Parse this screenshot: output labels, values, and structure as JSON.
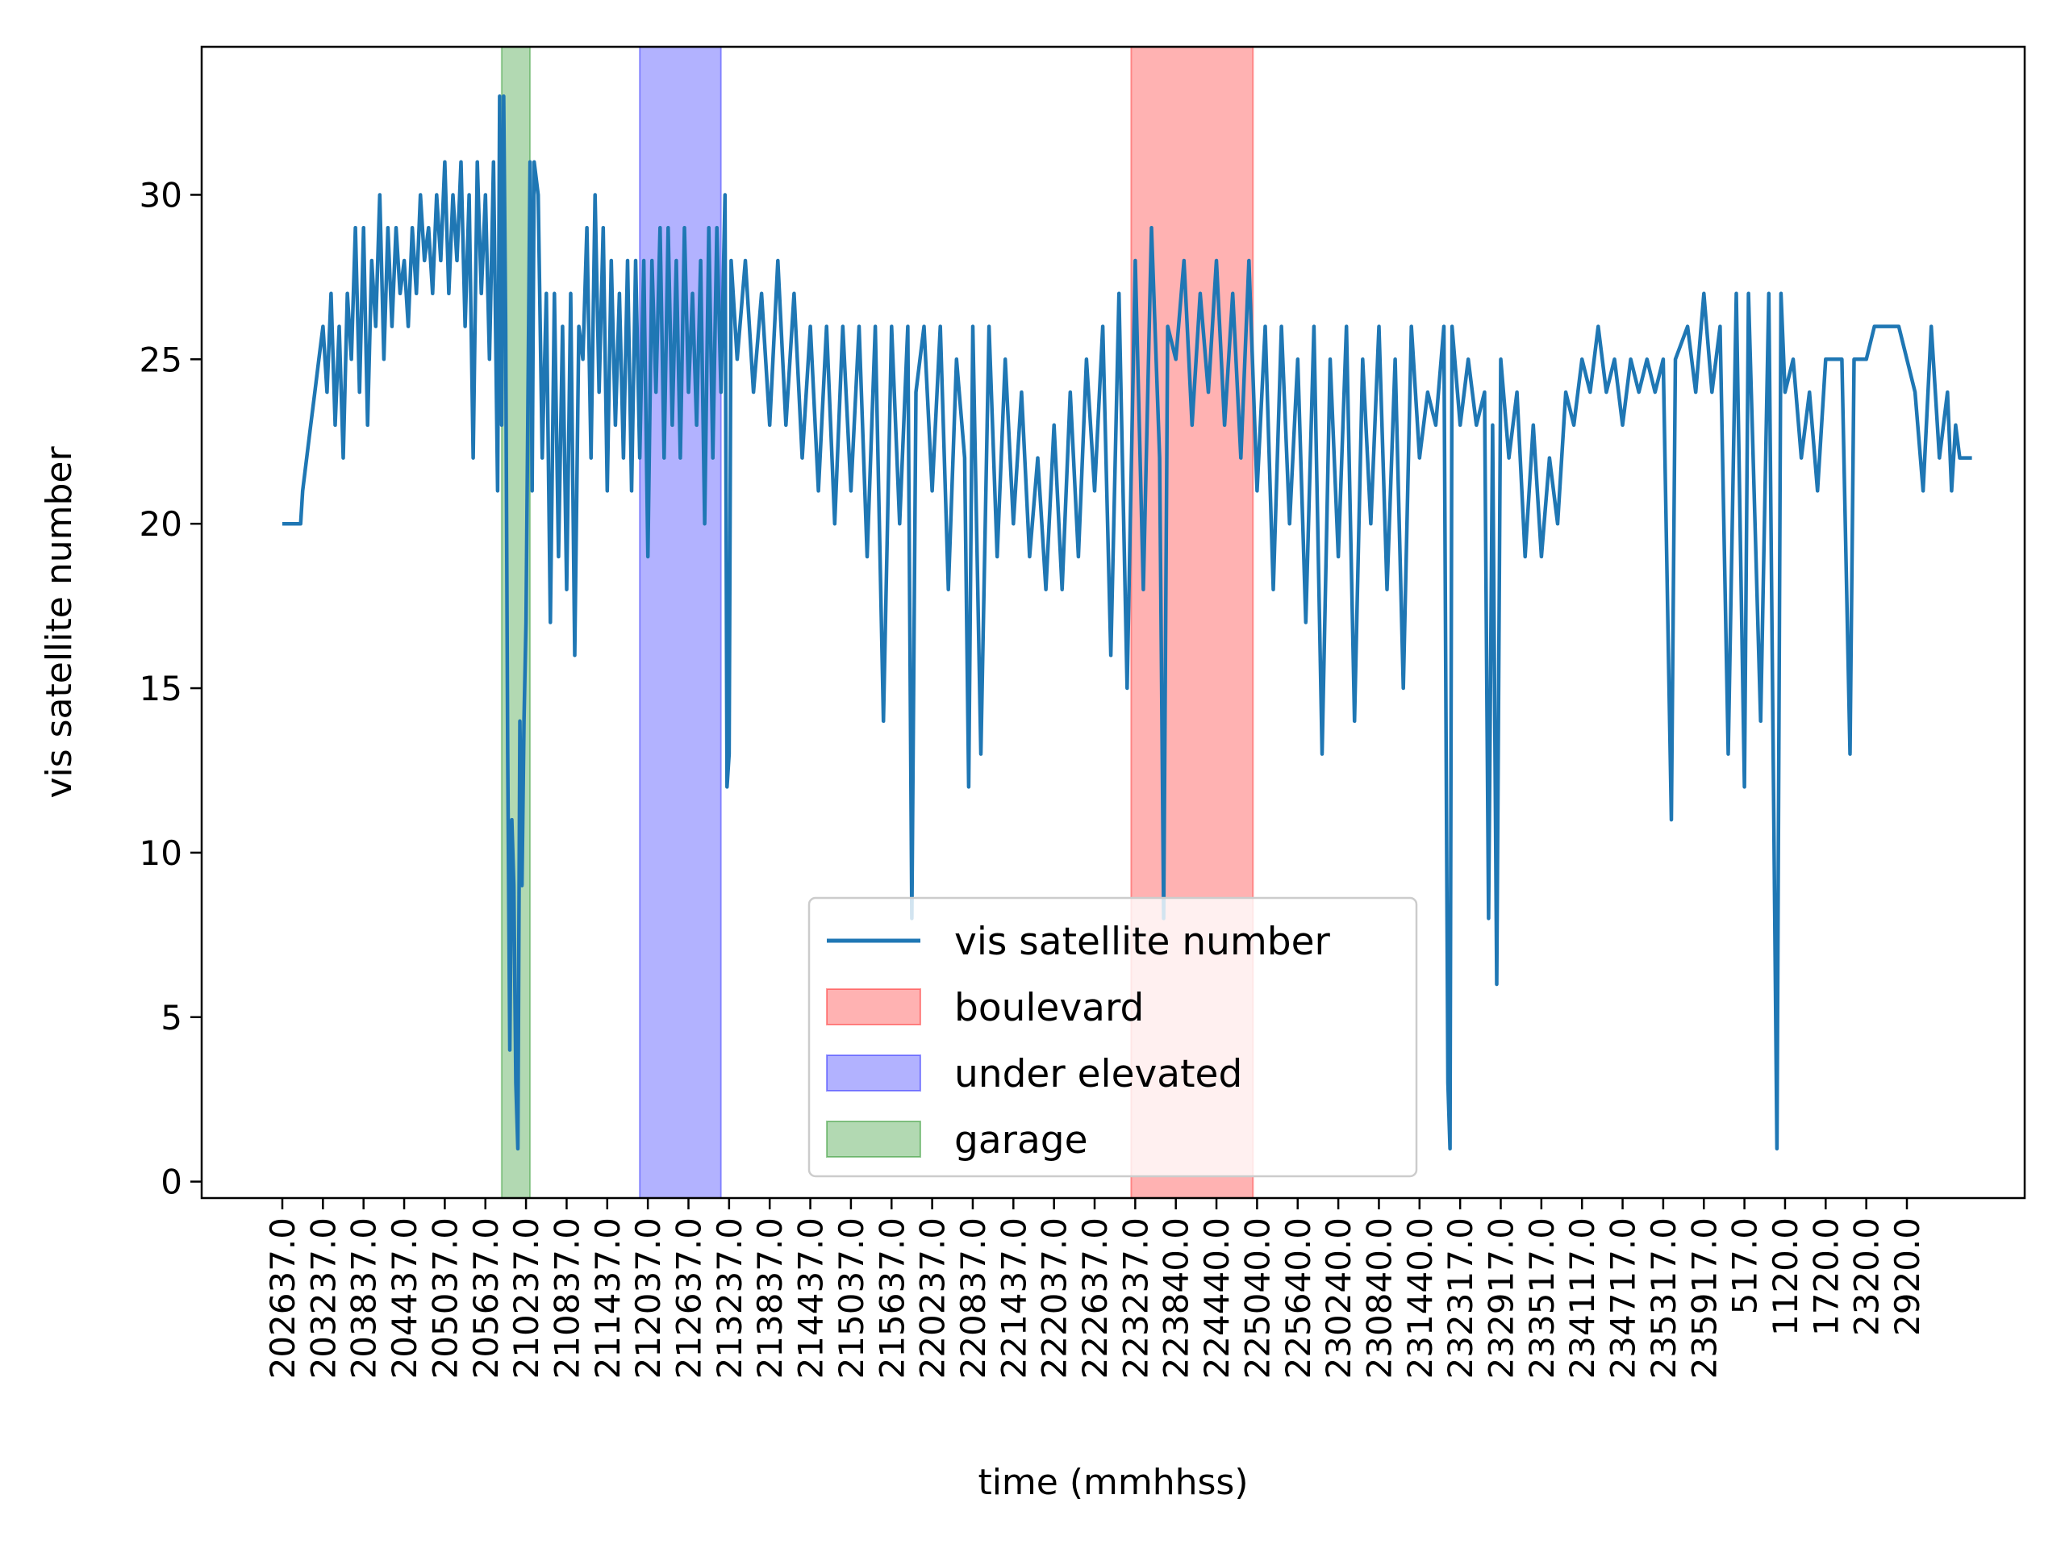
{
  "chart_data": {
    "type": "line",
    "xlabel": "time (mmhhss)",
    "ylabel": "vis satellite number",
    "ylim": [
      -0.5,
      34.5
    ],
    "yticks": [
      0,
      5,
      10,
      15,
      20,
      25,
      30
    ],
    "grid": false,
    "legend_position": "lower-center",
    "x_tick_labels": [
      "202637.0",
      "203237.0",
      "203837.0",
      "204437.0",
      "205037.0",
      "205637.0",
      "210237.0",
      "210837.0",
      "211437.0",
      "212037.0",
      "212637.0",
      "213237.0",
      "213837.0",
      "214437.0",
      "215037.0",
      "215637.0",
      "220237.0",
      "220837.0",
      "221437.0",
      "222037.0",
      "222637.0",
      "223237.0",
      "223840.0",
      "224440.0",
      "225040.0",
      "225640.0",
      "230240.0",
      "230840.0",
      "231440.0",
      "232317.0",
      "232917.0",
      "233517.0",
      "234117.0",
      "234717.0",
      "235317.0",
      "235917.0",
      "517.0",
      "1120.0",
      "1720.0",
      "2320.0",
      "2920.0"
    ],
    "x_index_range": [
      0,
      41.6
    ],
    "regions": [
      {
        "name": "boulevard",
        "x_start": 20.9,
        "x_end": 23.9,
        "color": "#ff0000"
      },
      {
        "name": "under elevated",
        "x_start": 8.8,
        "x_end": 10.8,
        "color": "#0000ff"
      },
      {
        "name": "garage",
        "x_start": 5.4,
        "x_end": 6.1,
        "color": "#008000"
      }
    ],
    "series": [
      {
        "name": "vis satellite number",
        "color": "#1f77b4",
        "points": [
          [
            0,
            20
          ],
          [
            0.45,
            20
          ],
          [
            0.5,
            21
          ],
          [
            0.6,
            22
          ],
          [
            0.7,
            23
          ],
          [
            0.8,
            24
          ],
          [
            0.9,
            25
          ],
          [
            1.0,
            26
          ],
          [
            1.1,
            24
          ],
          [
            1.2,
            27
          ],
          [
            1.3,
            23
          ],
          [
            1.4,
            26
          ],
          [
            1.5,
            22
          ],
          [
            1.6,
            27
          ],
          [
            1.7,
            25
          ],
          [
            1.8,
            29
          ],
          [
            1.9,
            24
          ],
          [
            2.0,
            29
          ],
          [
            2.1,
            23
          ],
          [
            2.2,
            28
          ],
          [
            2.3,
            26
          ],
          [
            2.4,
            30
          ],
          [
            2.5,
            25
          ],
          [
            2.6,
            29
          ],
          [
            2.7,
            26
          ],
          [
            2.8,
            29
          ],
          [
            2.9,
            27
          ],
          [
            3.0,
            28
          ],
          [
            3.1,
            26
          ],
          [
            3.2,
            29
          ],
          [
            3.3,
            27
          ],
          [
            3.4,
            30
          ],
          [
            3.5,
            28
          ],
          [
            3.6,
            29
          ],
          [
            3.7,
            27
          ],
          [
            3.8,
            30
          ],
          [
            3.9,
            28
          ],
          [
            4.0,
            31
          ],
          [
            4.1,
            27
          ],
          [
            4.2,
            30
          ],
          [
            4.3,
            28
          ],
          [
            4.4,
            31
          ],
          [
            4.5,
            26
          ],
          [
            4.6,
            30
          ],
          [
            4.7,
            22
          ],
          [
            4.8,
            31
          ],
          [
            4.9,
            27
          ],
          [
            5.0,
            30
          ],
          [
            5.1,
            25
          ],
          [
            5.2,
            31
          ],
          [
            5.3,
            21
          ],
          [
            5.35,
            33
          ],
          [
            5.4,
            23
          ],
          [
            5.45,
            33
          ],
          [
            5.5,
            26
          ],
          [
            5.55,
            13
          ],
          [
            5.6,
            4
          ],
          [
            5.65,
            11
          ],
          [
            5.7,
            9
          ],
          [
            5.75,
            3
          ],
          [
            5.8,
            1
          ],
          [
            5.85,
            14
          ],
          [
            5.9,
            9
          ],
          [
            5.95,
            14
          ],
          [
            6.0,
            17
          ],
          [
            6.05,
            24
          ],
          [
            6.1,
            31
          ],
          [
            6.15,
            21
          ],
          [
            6.2,
            31
          ],
          [
            6.3,
            30
          ],
          [
            6.4,
            22
          ],
          [
            6.5,
            27
          ],
          [
            6.6,
            17
          ],
          [
            6.7,
            27
          ],
          [
            6.8,
            19
          ],
          [
            6.9,
            26
          ],
          [
            7.0,
            18
          ],
          [
            7.1,
            27
          ],
          [
            7.2,
            16
          ],
          [
            7.3,
            26
          ],
          [
            7.4,
            25
          ],
          [
            7.5,
            29
          ],
          [
            7.6,
            22
          ],
          [
            7.7,
            30
          ],
          [
            7.8,
            24
          ],
          [
            7.9,
            29
          ],
          [
            8.0,
            21
          ],
          [
            8.1,
            28
          ],
          [
            8.2,
            23
          ],
          [
            8.3,
            27
          ],
          [
            8.4,
            22
          ],
          [
            8.5,
            28
          ],
          [
            8.6,
            21
          ],
          [
            8.7,
            28
          ],
          [
            8.8,
            22
          ],
          [
            8.9,
            28
          ],
          [
            9.0,
            19
          ],
          [
            9.1,
            28
          ],
          [
            9.2,
            24
          ],
          [
            9.3,
            29
          ],
          [
            9.4,
            22
          ],
          [
            9.5,
            29
          ],
          [
            9.6,
            23
          ],
          [
            9.7,
            28
          ],
          [
            9.8,
            22
          ],
          [
            9.9,
            29
          ],
          [
            10.0,
            24
          ],
          [
            10.1,
            27
          ],
          [
            10.2,
            23
          ],
          [
            10.3,
            28
          ],
          [
            10.4,
            20
          ],
          [
            10.5,
            29
          ],
          [
            10.6,
            22
          ],
          [
            10.7,
            29
          ],
          [
            10.8,
            24
          ],
          [
            10.9,
            30
          ],
          [
            10.95,
            12
          ],
          [
            11.0,
            13
          ],
          [
            11.05,
            28
          ],
          [
            11.2,
            25
          ],
          [
            11.4,
            28
          ],
          [
            11.6,
            24
          ],
          [
            11.8,
            27
          ],
          [
            12.0,
            23
          ],
          [
            12.2,
            28
          ],
          [
            12.4,
            23
          ],
          [
            12.6,
            27
          ],
          [
            12.8,
            22
          ],
          [
            13.0,
            26
          ],
          [
            13.2,
            21
          ],
          [
            13.4,
            26
          ],
          [
            13.6,
            20
          ],
          [
            13.8,
            26
          ],
          [
            14.0,
            21
          ],
          [
            14.2,
            26
          ],
          [
            14.4,
            19
          ],
          [
            14.6,
            26
          ],
          [
            14.8,
            14
          ],
          [
            15.0,
            26
          ],
          [
            15.2,
            20
          ],
          [
            15.4,
            26
          ],
          [
            15.5,
            8
          ],
          [
            15.6,
            24
          ],
          [
            15.8,
            26
          ],
          [
            16.0,
            21
          ],
          [
            16.2,
            26
          ],
          [
            16.4,
            18
          ],
          [
            16.6,
            25
          ],
          [
            16.8,
            22
          ],
          [
            16.9,
            12
          ],
          [
            17.0,
            26
          ],
          [
            17.2,
            13
          ],
          [
            17.4,
            26
          ],
          [
            17.6,
            19
          ],
          [
            17.8,
            25
          ],
          [
            18.0,
            20
          ],
          [
            18.2,
            24
          ],
          [
            18.4,
            19
          ],
          [
            18.6,
            22
          ],
          [
            18.8,
            18
          ],
          [
            19.0,
            23
          ],
          [
            19.2,
            18
          ],
          [
            19.4,
            24
          ],
          [
            19.6,
            19
          ],
          [
            19.8,
            25
          ],
          [
            20.0,
            21
          ],
          [
            20.2,
            26
          ],
          [
            20.4,
            16
          ],
          [
            20.6,
            27
          ],
          [
            20.8,
            15
          ],
          [
            21.0,
            28
          ],
          [
            21.2,
            18
          ],
          [
            21.4,
            29
          ],
          [
            21.6,
            22
          ],
          [
            21.7,
            8
          ],
          [
            21.8,
            26
          ],
          [
            22.0,
            25
          ],
          [
            22.2,
            28
          ],
          [
            22.4,
            23
          ],
          [
            22.6,
            27
          ],
          [
            22.8,
            24
          ],
          [
            23.0,
            28
          ],
          [
            23.2,
            23
          ],
          [
            23.4,
            27
          ],
          [
            23.6,
            22
          ],
          [
            23.8,
            28
          ],
          [
            24.0,
            21
          ],
          [
            24.2,
            26
          ],
          [
            24.4,
            18
          ],
          [
            24.6,
            26
          ],
          [
            24.8,
            20
          ],
          [
            25.0,
            25
          ],
          [
            25.2,
            17
          ],
          [
            25.4,
            26
          ],
          [
            25.6,
            13
          ],
          [
            25.8,
            25
          ],
          [
            26.0,
            19
          ],
          [
            26.2,
            26
          ],
          [
            26.4,
            14
          ],
          [
            26.6,
            25
          ],
          [
            26.8,
            20
          ],
          [
            27.0,
            26
          ],
          [
            27.2,
            18
          ],
          [
            27.4,
            25
          ],
          [
            27.6,
            15
          ],
          [
            27.8,
            26
          ],
          [
            28.0,
            22
          ],
          [
            28.2,
            24
          ],
          [
            28.4,
            23
          ],
          [
            28.6,
            26
          ],
          [
            28.7,
            3
          ],
          [
            28.75,
            1
          ],
          [
            28.8,
            26
          ],
          [
            29.0,
            23
          ],
          [
            29.2,
            25
          ],
          [
            29.4,
            23
          ],
          [
            29.6,
            24
          ],
          [
            29.7,
            8
          ],
          [
            29.8,
            23
          ],
          [
            29.9,
            6
          ],
          [
            30.0,
            25
          ],
          [
            30.2,
            22
          ],
          [
            30.4,
            24
          ],
          [
            30.6,
            19
          ],
          [
            30.8,
            23
          ],
          [
            31.0,
            19
          ],
          [
            31.2,
            22
          ],
          [
            31.4,
            20
          ],
          [
            31.6,
            24
          ],
          [
            31.8,
            23
          ],
          [
            32.0,
            25
          ],
          [
            32.2,
            24
          ],
          [
            32.4,
            26
          ],
          [
            32.6,
            24
          ],
          [
            32.8,
            25
          ],
          [
            33.0,
            23
          ],
          [
            33.2,
            25
          ],
          [
            33.4,
            24
          ],
          [
            33.6,
            25
          ],
          [
            33.8,
            24
          ],
          [
            34.0,
            25
          ],
          [
            34.2,
            11
          ],
          [
            34.3,
            25
          ],
          [
            34.6,
            26
          ],
          [
            34.8,
            24
          ],
          [
            35.0,
            27
          ],
          [
            35.2,
            24
          ],
          [
            35.4,
            26
          ],
          [
            35.6,
            13
          ],
          [
            35.8,
            27
          ],
          [
            36.0,
            12
          ],
          [
            36.1,
            27
          ],
          [
            36.4,
            14
          ],
          [
            36.6,
            27
          ],
          [
            36.8,
            1
          ],
          [
            36.9,
            27
          ],
          [
            37.0,
            24
          ],
          [
            37.2,
            25
          ],
          [
            37.4,
            22
          ],
          [
            37.6,
            24
          ],
          [
            37.8,
            21
          ],
          [
            38.0,
            25
          ],
          [
            38.4,
            25
          ],
          [
            38.6,
            13
          ],
          [
            38.7,
            25
          ],
          [
            39.0,
            25
          ],
          [
            39.2,
            26
          ],
          [
            39.6,
            26
          ],
          [
            39.8,
            26
          ],
          [
            40.0,
            25
          ],
          [
            40.2,
            24
          ],
          [
            40.4,
            21
          ],
          [
            40.6,
            26
          ],
          [
            40.8,
            22
          ],
          [
            41.0,
            24
          ],
          [
            41.1,
            21
          ],
          [
            41.2,
            23
          ],
          [
            41.3,
            22
          ],
          [
            41.6,
            22
          ]
        ]
      }
    ]
  }
}
